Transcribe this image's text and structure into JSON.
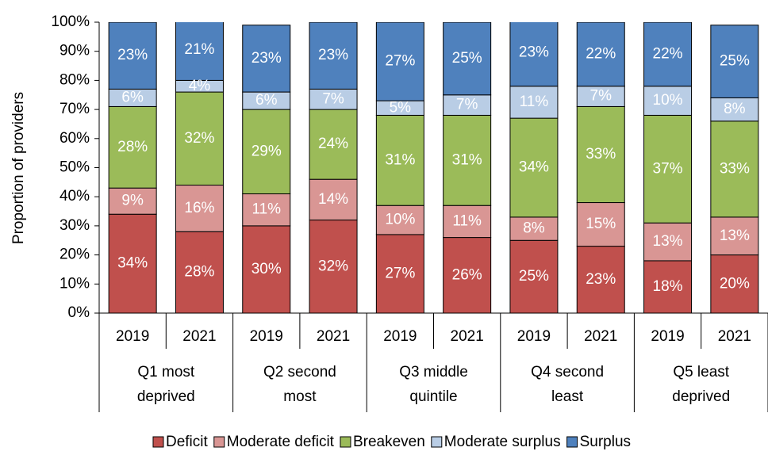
{
  "chart_data": {
    "type": "stacked_bar",
    "y_axis_label": "Proportion of providers",
    "categories": [
      "2019",
      "2021",
      "2019",
      "2021",
      "2019",
      "2021",
      "2019",
      "2021",
      "2019",
      "2021"
    ],
    "groups": [
      [
        "Q1 most",
        "deprived"
      ],
      [
        "Q2 second",
        "most"
      ],
      [
        "Q3 middle",
        "quintile"
      ],
      [
        "Q4 second",
        "least"
      ],
      [
        "Q5 least",
        "deprived"
      ]
    ],
    "series": [
      {
        "name": "Deficit",
        "color": "#c0504d",
        "values": [
          34,
          28,
          30,
          32,
          27,
          26,
          25,
          23,
          18,
          20
        ],
        "value_labels": [
          "34%",
          "28%",
          "30%",
          "32%",
          "27%",
          "26%",
          "25%",
          "23%",
          "18%",
          "20%"
        ]
      },
      {
        "name": "Moderate deficit",
        "color": "#d99694",
        "values": [
          9,
          16,
          11,
          14,
          10,
          11,
          8,
          15,
          13,
          13
        ],
        "value_labels": [
          "9%",
          "16%",
          "11%",
          "14%",
          "10%",
          "11%",
          "8%",
          "15%",
          "13%",
          "13%"
        ]
      },
      {
        "name": "Breakeven",
        "color": "#9bbb59",
        "values": [
          28,
          32,
          29,
          24,
          31,
          31,
          34,
          33,
          37,
          33
        ],
        "value_labels": [
          "28%",
          "32%",
          "29%",
          "24%",
          "31%",
          "31%",
          "34%",
          "33%",
          "37%",
          "33%"
        ]
      },
      {
        "name": "Moderate surplus",
        "color": "#b9cde5",
        "values": [
          6,
          4,
          6,
          7,
          5,
          7,
          11,
          7,
          10,
          8
        ],
        "value_labels": [
          "6%",
          "4%",
          "6%",
          "7%",
          "5%",
          "7%",
          "11%",
          "7%",
          "10%",
          "8%"
        ]
      },
      {
        "name": "Surplus",
        "color": "#4f81bd",
        "values": [
          23,
          21,
          23,
          23,
          27,
          25,
          23,
          22,
          22,
          25
        ],
        "value_labels": [
          "23%",
          "21%",
          "23%",
          "23%",
          "27%",
          "25%",
          "23%",
          "22%",
          "22%",
          "25%"
        ]
      }
    ],
    "ylim": [
      0,
      100
    ],
    "yticks": [
      {
        "value": 0,
        "label": "0%"
      },
      {
        "value": 10,
        "label": "10%"
      },
      {
        "value": 20,
        "label": "20%"
      },
      {
        "value": 30,
        "label": "30%"
      },
      {
        "value": 40,
        "label": "40%"
      },
      {
        "value": 50,
        "label": "50%"
      },
      {
        "value": 60,
        "label": "60%"
      },
      {
        "value": 70,
        "label": "70%"
      },
      {
        "value": 80,
        "label": "80%"
      },
      {
        "value": 90,
        "label": "90%"
      },
      {
        "value": 100,
        "label": "100%"
      }
    ],
    "legend": "bottom"
  }
}
